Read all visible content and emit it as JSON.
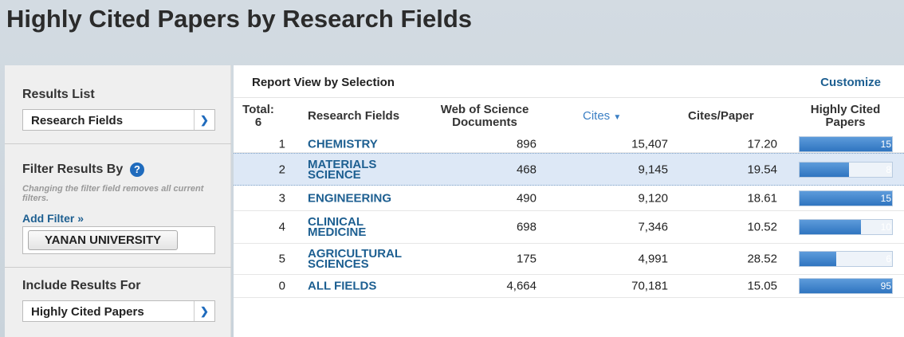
{
  "header": {
    "title": "Highly Cited Papers by Research Fields"
  },
  "sidebar": {
    "results_list_label": "Results List",
    "results_list_value": "Research Fields",
    "filter_label": "Filter Results By",
    "filter_help": "?",
    "filter_note": "Changing the filter field removes all current filters.",
    "add_filter": "Add Filter »",
    "filter_chip": "YANAN UNIVERSITY",
    "include_label": "Include Results For",
    "include_value": "Highly Cited Papers"
  },
  "report": {
    "title": "Report View by Selection",
    "customize": "Customize",
    "columns": {
      "total_label": "Total:",
      "total": 6,
      "field": "Research Fields",
      "documents": "Web of Science Documents",
      "cites": "Cites",
      "ratio": "Cites/Paper",
      "highly_cited": "Highly Cited Papers"
    },
    "rows": [
      {
        "rank": 1,
        "field": "CHEMISTRY",
        "documents": "896",
        "cites": "15,407",
        "ratio": "17.20",
        "highly_cited": 15
      },
      {
        "rank": 2,
        "field": "MATERIALS SCIENCE",
        "documents": "468",
        "cites": "9,145",
        "ratio": "19.54",
        "highly_cited": 8
      },
      {
        "rank": 3,
        "field": "ENGINEERING",
        "documents": "490",
        "cites": "9,120",
        "ratio": "18.61",
        "highly_cited": 15
      },
      {
        "rank": 4,
        "field": "CLINICAL MEDICINE",
        "documents": "698",
        "cites": "7,346",
        "ratio": "10.52",
        "highly_cited": 10
      },
      {
        "rank": 5,
        "field": "AGRICULTURAL SCIENCES",
        "documents": "175",
        "cites": "4,991",
        "ratio": "28.52",
        "highly_cited": 6
      },
      {
        "rank": 0,
        "field": "ALL FIELDS",
        "documents": "4,664",
        "cites": "70,181",
        "ratio": "15.05",
        "highly_cited": 95
      }
    ]
  }
}
